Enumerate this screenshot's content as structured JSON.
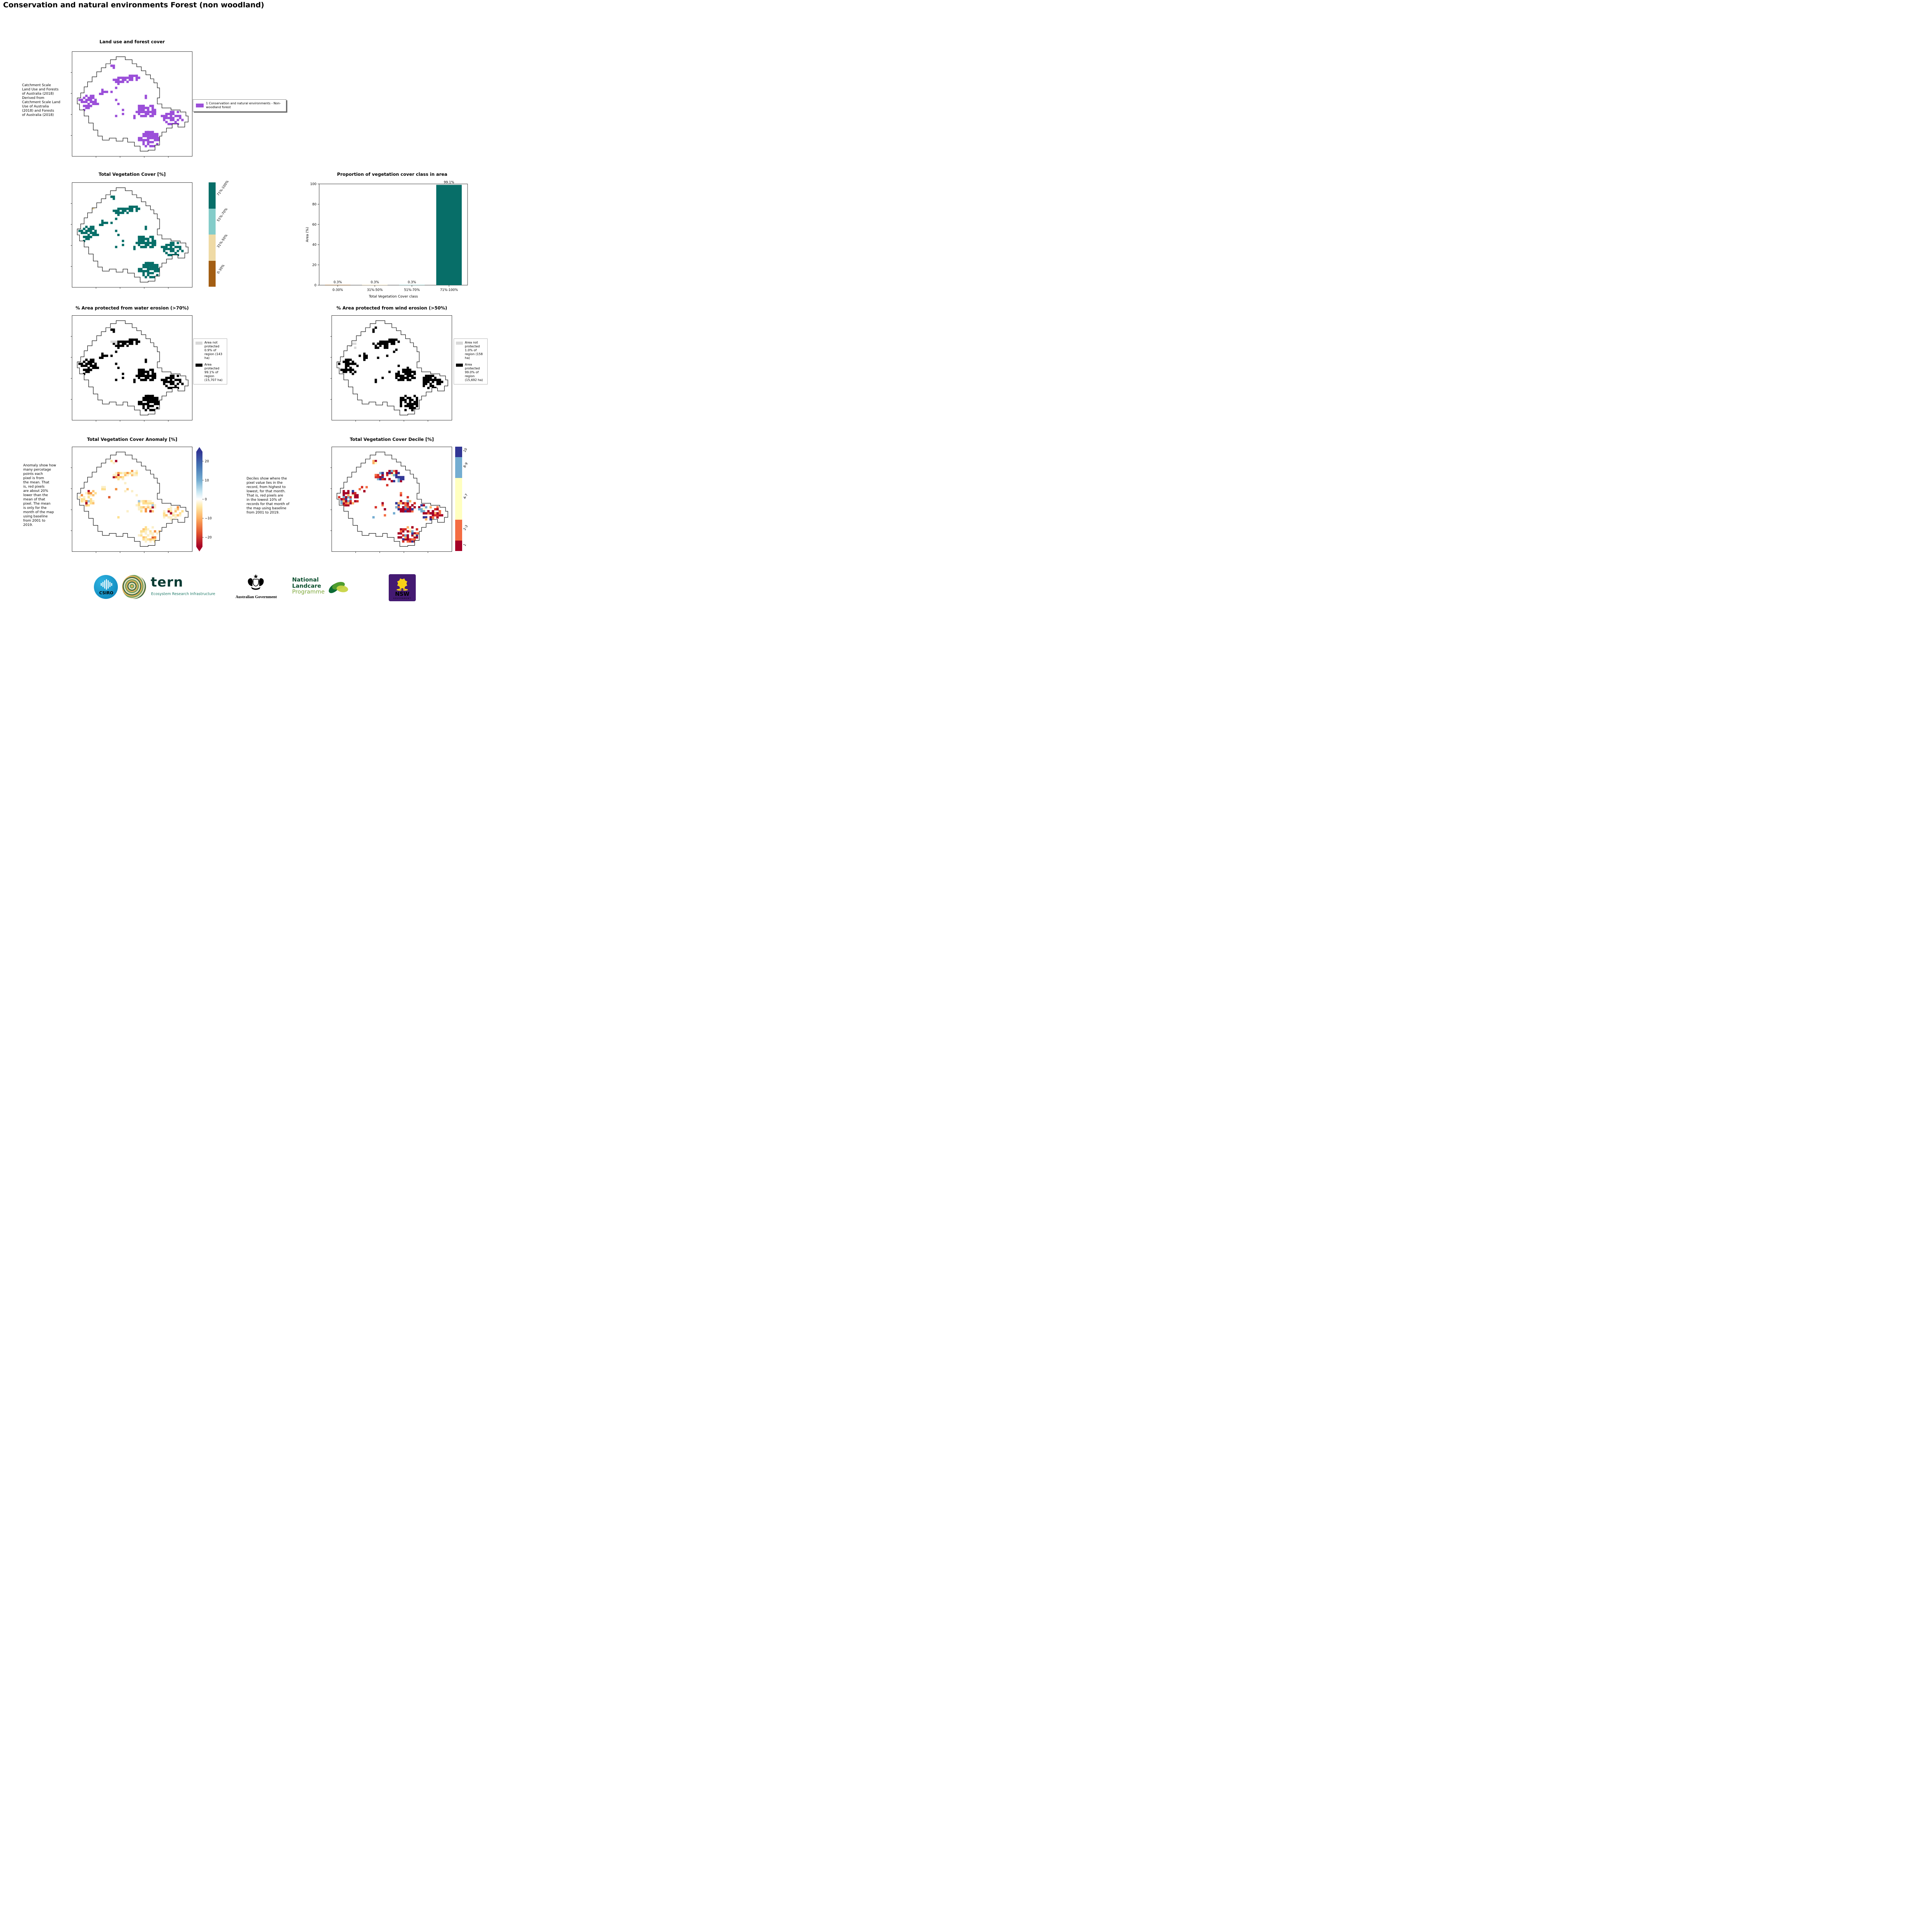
{
  "page": {
    "title": "Conservation and natural environments Forest (non woodland)"
  },
  "colors": {
    "landuse_purple": "#9B4FD9",
    "veg_dark_teal": "#076E68",
    "veg_light_teal": "#84CCC9",
    "veg_tan": "#EFDAA5",
    "veg_brown": "#A35E13",
    "protected_black": "#000000",
    "not_protected_gray": "#D8D8D8",
    "anomaly_scale_top_to_bottom": [
      "#313695",
      "#74ADD1",
      "#FFFFFF",
      "#FEE090",
      "#F46D43",
      "#A50026"
    ]
  },
  "panels": {
    "landuse": {
      "title": "Land use and forest cover",
      "caption": "Catchment Scale\nLand Use and Forests\nof Australia (2018)\nDerived from\nCatchment Scale Land\nUse of Australia\n(2018) and Forests\nof Australia (2018)",
      "legend_label": "1 Conservation and natural environments - Non-woodland forest",
      "legend_color": "#9B4FD9"
    },
    "vegcover": {
      "title": "Total Vegetation Cover [%]",
      "colorbar": [
        {
          "label": "71%-100%",
          "color": "#076E68",
          "h": 25
        },
        {
          "label": "51%-70%",
          "color": "#84CCC9",
          "h": 25
        },
        {
          "label": "31%-50%",
          "color": "#EFDAA5",
          "h": 25
        },
        {
          "label": "0-30%",
          "color": "#A35E13",
          "h": 25
        }
      ]
    },
    "water": {
      "title": "% Area protected from water erosion (>70%)",
      "legend": [
        {
          "label": "Area not protected 0.9% of region (143 ha)",
          "color": "#D8D8D8"
        },
        {
          "label": "Area protected 99.1% of region (15,707 ha)",
          "color": "#000000"
        }
      ]
    },
    "wind": {
      "title": "% Area protected from wind erosion (>50%)",
      "legend": [
        {
          "label": "Area not protected 1.0% of region (158 ha)",
          "color": "#D8D8D8"
        },
        {
          "label": "Area protected 99.0% of region (15,692 ha)",
          "color": "#000000"
        }
      ]
    },
    "anomaly": {
      "title": "Total Vegetation Cover Anomaly [%]",
      "caption": "Anomaly show how\nmany percetage\npoints each\npixel is from\nthe mean. That\nis, red pixels\nare about 20%\nlower than the\nmean of that\npixel. The mean\nis only for the\nmonth of the map\nusing baseline\nfrom 2001 to\n2019.",
      "ticks": [
        "20",
        "10",
        "0",
        "−10",
        "−20"
      ]
    },
    "decile": {
      "title": "Total Vegetation Cover Decile [%]",
      "caption": "Deciles show where the\npixel value lies in the\nrecord, from highest to\nlowest, for that month.\nThat is, red pixels are\nin the lowest 10% of\nrecords for that month of\nthe map using baseline\nfrom 2001 to 2019.",
      "colorbar": [
        {
          "label": "10",
          "color": "#313695",
          "h": 10
        },
        {
          "label": "8-9",
          "color": "#74ADD1",
          "h": 20
        },
        {
          "label": "4-7",
          "color": "#FFFFBF",
          "h": 40
        },
        {
          "label": "2-3",
          "color": "#F46D43",
          "h": 20
        },
        {
          "label": "1",
          "color": "#A50026",
          "h": 10
        }
      ]
    }
  },
  "chart_data": {
    "type": "bar",
    "title": "Proportion of vegetation cover class in area",
    "categories": [
      "0-30%",
      "31%-50%",
      "51%-70%",
      "71%-100%"
    ],
    "values": [
      0.3,
      0.3,
      0.3,
      99.1
    ],
    "value_labels": [
      "0.3%",
      "0.3%",
      "0.3%",
      "99.1%"
    ],
    "xlabel": "Total Vegetation Cover class",
    "ylabel": "Area (%)",
    "ylim": [
      0,
      100
    ],
    "yticks": [
      0,
      20,
      40,
      60,
      80,
      100
    ],
    "bar_colors": [
      "#A35E13",
      "#EFDAA5",
      "#84CCC9",
      "#076E68"
    ],
    "grid": false,
    "legend": "none"
  },
  "footer": {
    "csiro": "CSIRO",
    "tern": "tern",
    "tern_sub": "Ecosystem Research Infrastructure",
    "aus_gov": "Australian Government",
    "landcare_1": "National",
    "landcare_2": "Landcare",
    "landcare_3": "Programme",
    "nsw": "NSW",
    "nsw_sub": "GOVERNMENT"
  }
}
